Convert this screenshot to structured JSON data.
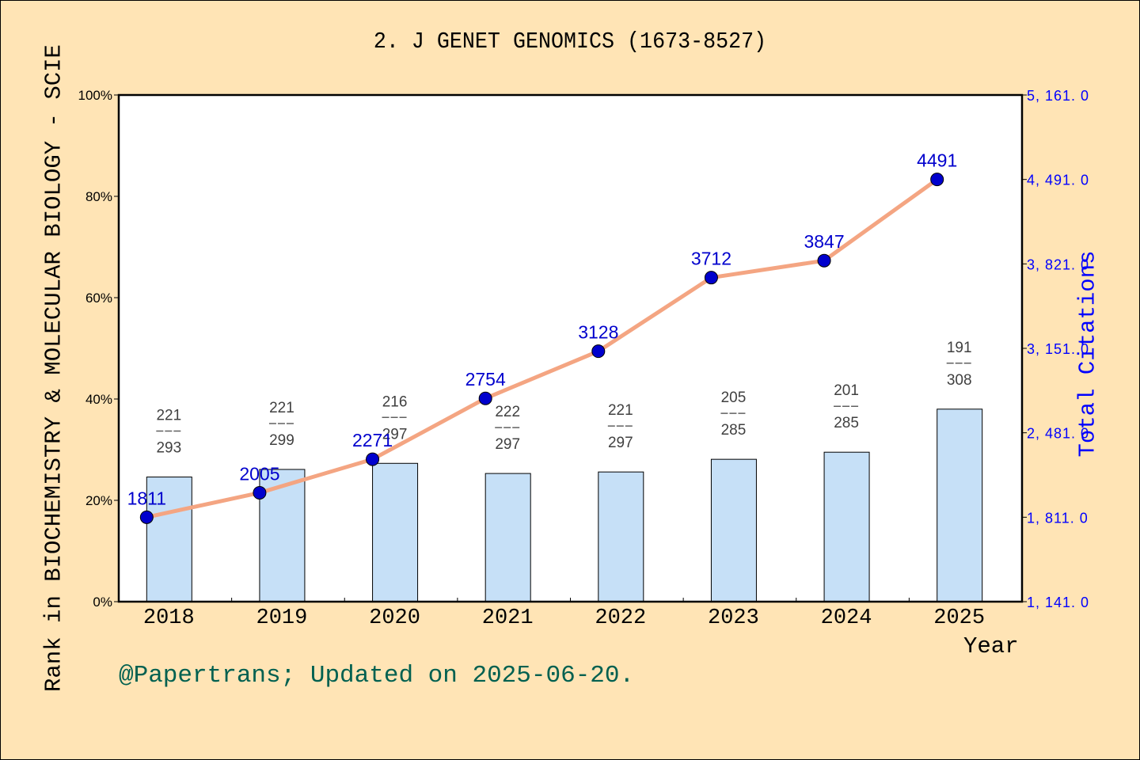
{
  "title": "2. J GENET GENOMICS (1673-8527)",
  "left_axis_label": "Rank in BIOCHEMISTRY & MOLECULAR BIOLOGY - SCIE",
  "right_axis_label": "Total Citations",
  "x_axis_label": "Year",
  "footer": "@Papertrans; Updated on 2025-06-20.",
  "colors": {
    "background": "#FFE4B5",
    "plot_background": "#FFFFFF",
    "bar_fill": "#C6E0F7",
    "line": "#F4A582",
    "marker": "#0000CD",
    "right_axis": "#0000FF",
    "footer": "#006050"
  },
  "chart_data": [
    {
      "type": "bar",
      "title": "2. J GENET GENOMICS (1673-8527)",
      "xlabel": "Year",
      "ylabel": "Rank in BIOCHEMISTRY & MOLECULAR BIOLOGY - SCIE",
      "categories": [
        "2018",
        "2019",
        "2020",
        "2021",
        "2022",
        "2023",
        "2024",
        "2025"
      ],
      "rank": [
        221,
        221,
        216,
        222,
        221,
        205,
        201,
        191
      ],
      "total_in_category": [
        293,
        299,
        297,
        297,
        297,
        285,
        285,
        308
      ],
      "values": [
        24.6,
        26.1,
        27.3,
        25.3,
        25.6,
        28.1,
        29.5,
        38.0
      ],
      "value_unit": "percent",
      "ylim": [
        0,
        100
      ],
      "yticks": [
        "0%",
        "20%",
        "40%",
        "60%",
        "80%",
        "100%"
      ],
      "grid": false
    },
    {
      "type": "line",
      "ylabel": "Total Citations",
      "axis": "right",
      "categories": [
        "2018",
        "2019",
        "2020",
        "2021",
        "2022",
        "2023",
        "2024",
        "2025"
      ],
      "values": [
        1811,
        2005,
        2271,
        2754,
        3128,
        3712,
        3847,
        4491
      ],
      "ylim": [
        1141,
        5161
      ],
      "yticks": [
        "1, 141. 0",
        "1, 811. 0",
        "2, 481. 0",
        "3, 151. 0",
        "3, 821. 0",
        "4, 491. 0",
        "5, 161. 0"
      ]
    }
  ]
}
